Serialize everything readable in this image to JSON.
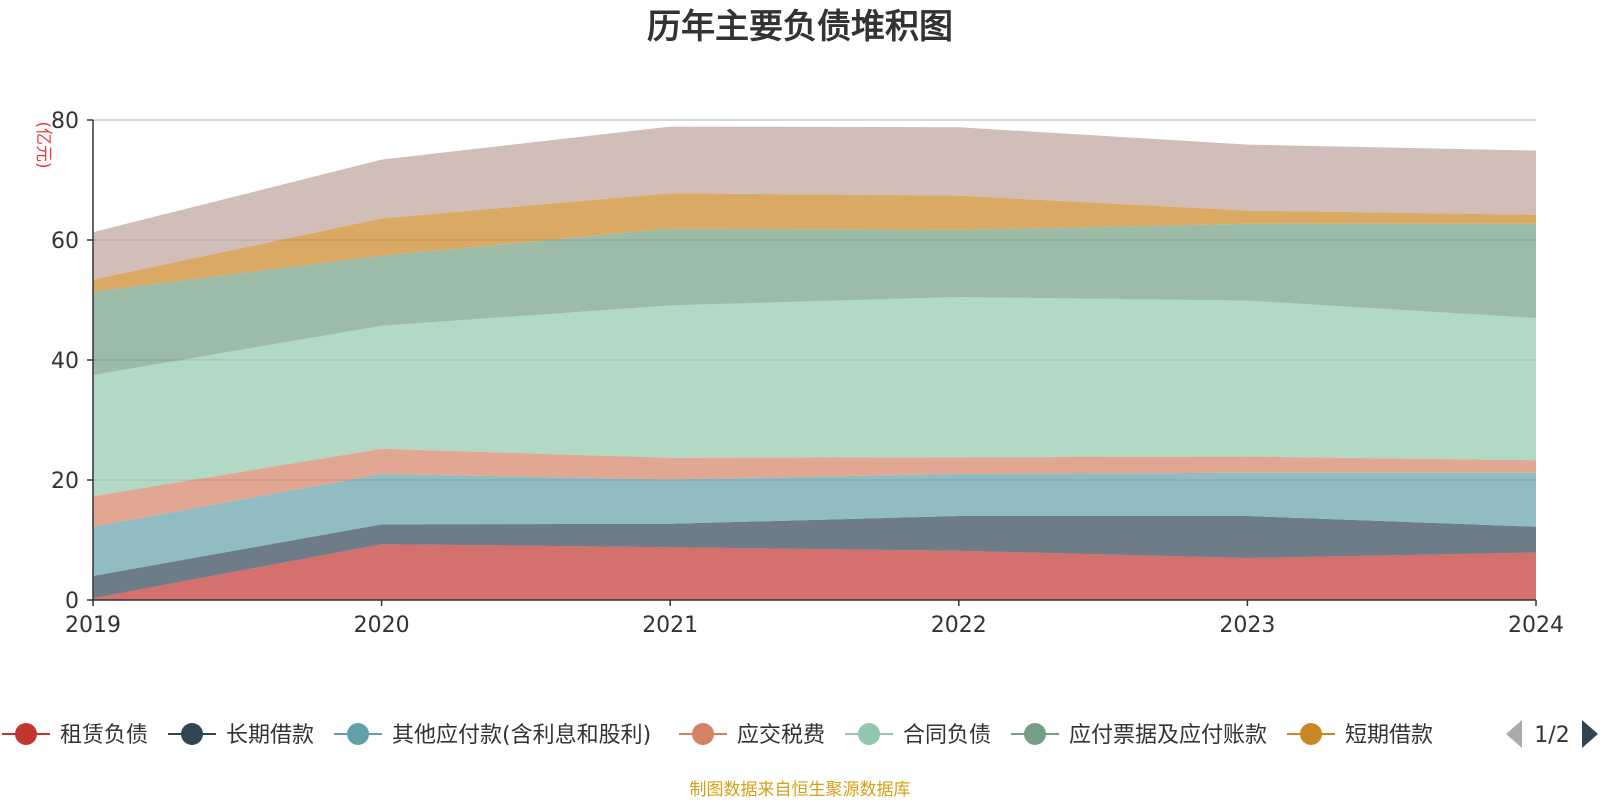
{
  "chart_data": {
    "type": "area",
    "stacked": true,
    "title": "历年主要负债堆积图",
    "ylabel": "(亿元)",
    "x": [
      "2019",
      "2020",
      "2021",
      "2022",
      "2023",
      "2024"
    ],
    "ylim": [
      0,
      80
    ],
    "yticks": [
      "0",
      "20",
      "40",
      "60",
      "80"
    ],
    "grid": true,
    "legend_position": "bottom",
    "series": [
      {
        "name": "租赁负债",
        "color": "#c23531",
        "values": [
          0.3,
          9.3,
          8.8,
          8.2,
          7.0,
          7.9
        ]
      },
      {
        "name": "长期借款",
        "color": "#2f4554",
        "values": [
          3.7,
          3.3,
          3.9,
          5.8,
          7.0,
          4.3
        ]
      },
      {
        "name": "其他应付款(含利息和股利)",
        "color": "#61a0a8",
        "values": [
          8.2,
          8.4,
          7.4,
          7.0,
          7.2,
          9.0
        ]
      },
      {
        "name": "应交税费",
        "color": "#d48265",
        "values": [
          5.1,
          4.2,
          3.6,
          2.8,
          2.7,
          2.1
        ]
      },
      {
        "name": "合同负债",
        "color": "#91c7ae",
        "values": [
          20.2,
          20.5,
          25.4,
          26.7,
          26.0,
          23.7
        ]
      },
      {
        "name": "应付票据及应付账款",
        "color": "#749f83",
        "values": [
          13.9,
          11.7,
          12.8,
          11.2,
          12.8,
          15.7
        ]
      },
      {
        "name": "短期借款",
        "color": "#ca8622",
        "values": [
          2.0,
          6.2,
          5.9,
          5.7,
          2.2,
          1.5
        ]
      },
      {
        "name": "",
        "color": "#bda29a",
        "values": [
          7.9,
          9.8,
          11.1,
          11.4,
          11.0,
          10.7
        ]
      }
    ]
  },
  "legend": {
    "items": [
      "租赁负债",
      "长期借款",
      "其他应付款(含利息和股利)",
      "应交税费",
      "合同负债",
      "应付票据及应付账款",
      "短期借款"
    ],
    "page_label": "1/2"
  },
  "source_text": "制图数据来自恒生聚源数据库"
}
